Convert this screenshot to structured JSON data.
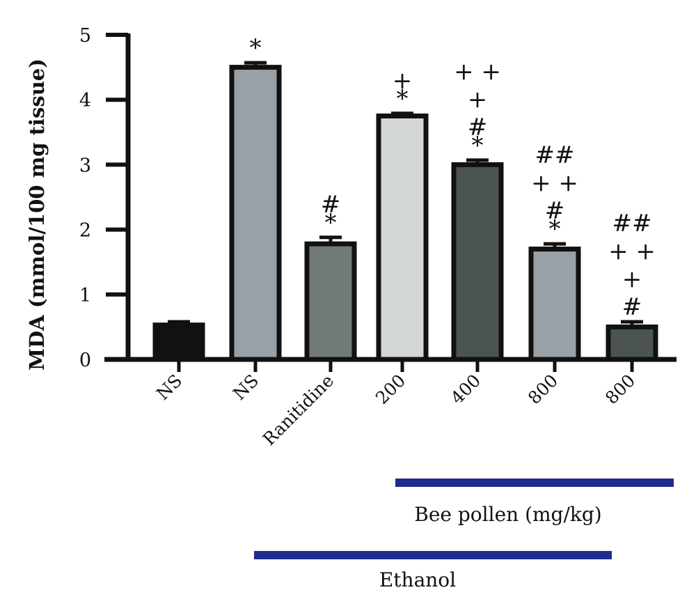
{
  "chart_data": {
    "type": "bar",
    "ylabel": "MDA (mmol/100 mg tissue)",
    "ylim": [
      0,
      5
    ],
    "yticks": [
      "0",
      "1",
      "2",
      "3",
      "4",
      "5"
    ],
    "categories": [
      "NS",
      "NS",
      "Ranitidine",
      "200",
      "400",
      "800",
      "800"
    ],
    "values": [
      0.53,
      4.5,
      1.78,
      3.75,
      3.0,
      1.7,
      0.5
    ],
    "errors": [
      0.05,
      0.07,
      0.1,
      0.04,
      0.07,
      0.08,
      0.08
    ],
    "bar_colors": [
      "#111111",
      "#9aa1a6",
      "#727a78",
      "#d3d7d3",
      "#4c5453",
      "#9aa1a6",
      "#4c5453"
    ],
    "annotations": [
      [],
      [
        "*"
      ],
      [
        "*",
        "#"
      ],
      [
        "*",
        "+"
      ],
      [
        "*",
        "#",
        "+",
        "+ +"
      ],
      [
        "*",
        "#",
        "+ +",
        "##"
      ],
      [
        "#",
        "+",
        "+ +",
        "##"
      ]
    ],
    "groups": [
      {
        "label": "Bee pollen (mg/kg)",
        "color": "#1f2b8f"
      },
      {
        "label": "Ethanol",
        "color": "#1f2b8f"
      }
    ]
  }
}
